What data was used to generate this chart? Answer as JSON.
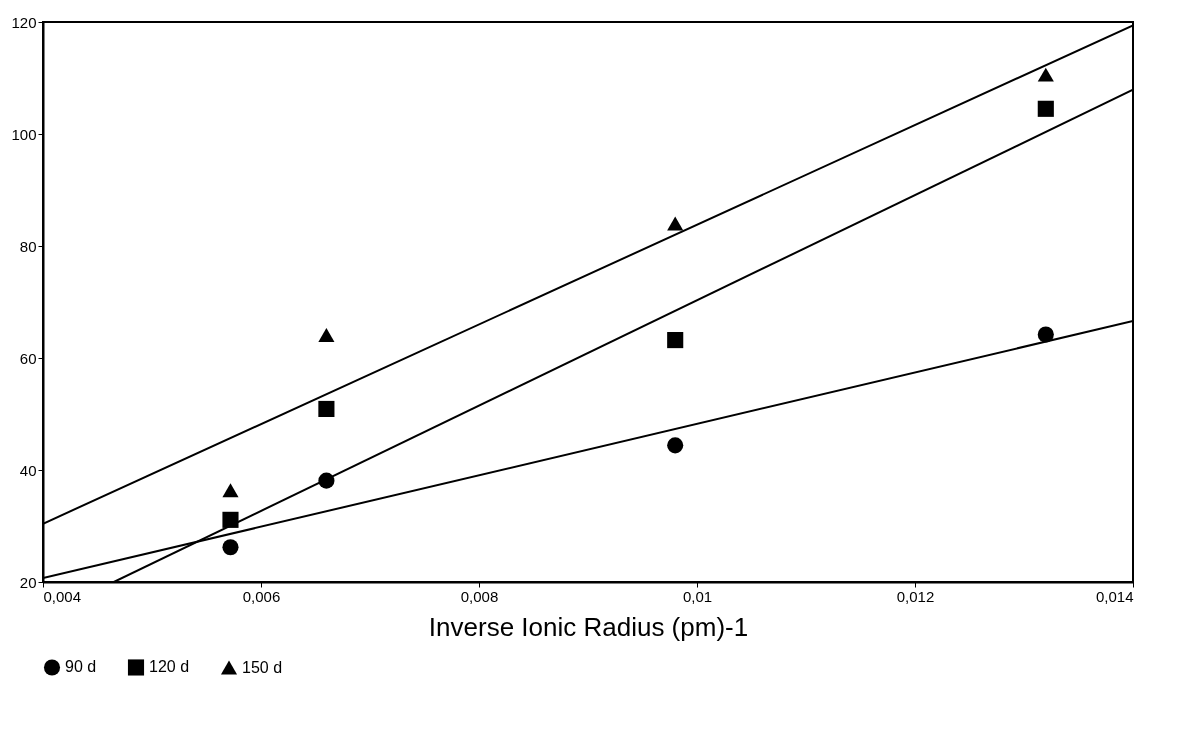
{
  "chart_data": {
    "type": "scatter",
    "xlabel": "Inverse Ionic Radius (pm)-1",
    "x": [
      0.00572,
      0.0066,
      0.0098,
      0.0132
    ],
    "xlim": [
      0.004,
      0.014
    ],
    "xticks": [
      {
        "value": 0.004,
        "label": "0,004"
      },
      {
        "value": 0.006,
        "label": "0,006"
      },
      {
        "value": 0.008,
        "label": "0,008"
      },
      {
        "value": 0.01,
        "label": "0,01"
      },
      {
        "value": 0.012,
        "label": "0,012"
      },
      {
        "value": 0.014,
        "label": "0,014"
      }
    ],
    "ylim": [
      20,
      120
    ],
    "yticks": [
      20,
      40,
      60,
      80,
      100,
      120
    ],
    "legend": "bottom",
    "grid": false,
    "series": [
      {
        "name": "90 d",
        "color": "#000000",
        "marker": "circle",
        "values": [
          26.2,
          38.1,
          44.4,
          64.2
        ]
      },
      {
        "name": "120 d",
        "color": "#000000",
        "marker": "square",
        "values": [
          31.1,
          50.9,
          63.2,
          104.5
        ]
      },
      {
        "name": "150 d",
        "color": "#000000",
        "marker": "triangle",
        "values": [
          36.4,
          64.1,
          84.0,
          110.6
        ]
      },
      {
        "type": "line",
        "color": "#000000",
        "x": [
          0.004,
          0.014
        ],
        "values": [
          20.7,
          66.6
        ]
      },
      {
        "type": "line",
        "color": "#000000",
        "x": [
          0.00465,
          0.014
        ],
        "values": [
          20,
          107.9
        ]
      },
      {
        "type": "line",
        "color": "#000000",
        "x": [
          0.004,
          0.014
        ],
        "values": [
          30.4,
          119.4
        ]
      }
    ]
  }
}
